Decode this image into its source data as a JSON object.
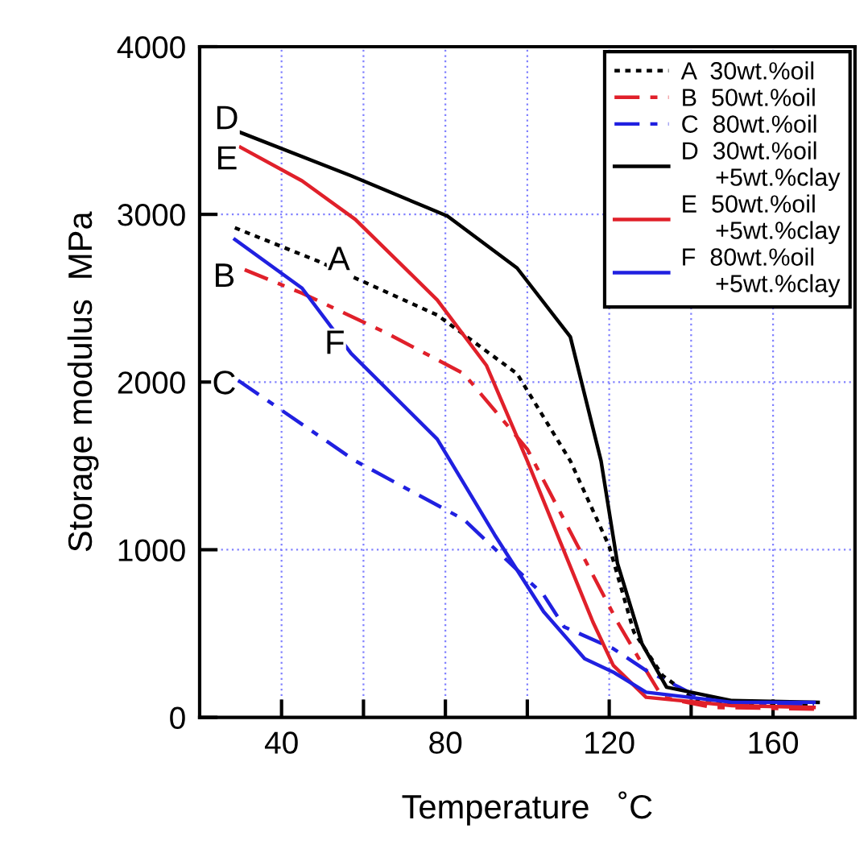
{
  "chart_data": {
    "type": "line",
    "xlabel": "Temperature   ˚C",
    "ylabel": "Storage modulus  MPa",
    "xlim": [
      20,
      180
    ],
    "ylim": [
      0,
      4000
    ],
    "xticks": [
      40,
      {
        "value": 60,
        "label": null
      },
      80,
      {
        "value": 100,
        "label": null
      },
      120,
      {
        "value": 140,
        "label": null
      },
      160
    ],
    "yticks": [
      0,
      1000,
      2000,
      3000,
      4000
    ],
    "grid": true,
    "legend": "top right",
    "marker": "none",
    "series": [
      {
        "name": "A  30wt.%oil",
        "color": "#000000",
        "line_style": "dotted",
        "x": [
          28.6,
          49,
          58,
          78,
          97.5,
          110.5,
          120,
          126,
          133,
          142,
          155,
          170
        ],
        "values": [
          2920,
          2720,
          2620,
          2400,
          2050,
          1530,
          1020,
          510,
          250,
          90,
          70,
          70
        ]
      },
      {
        "name": "B  50wt.%oil",
        "color": "#e0202a",
        "line_style": "dashed",
        "x": [
          31,
          45,
          65,
          84.5,
          100,
          113,
          122,
          128,
          133,
          145,
          170
        ],
        "values": [
          2670,
          2530,
          2300,
          2050,
          1600,
          990,
          570,
          320,
          120,
          60,
          50
        ]
      },
      {
        "name": "C  80wt.%oil",
        "color": "#2020e0",
        "line_style": "dashed",
        "x": [
          29.4,
          58,
          84.5,
          104,
          109,
          121,
          129,
          142,
          155,
          170
        ],
        "values": [
          2010,
          1530,
          1180,
          730,
          540,
          410,
          280,
          120,
          80,
          80
        ]
      },
      {
        "name": "D  30wt.%oil\n     +5wt.%clay",
        "color": "#000000",
        "line_style": "solid",
        "x": [
          29.8,
          57,
          80.5,
          97.5,
          110.5,
          118,
          122,
          128,
          134,
          150,
          171
        ],
        "values": [
          3490,
          3230,
          2990,
          2680,
          2270,
          1530,
          920,
          440,
          180,
          100,
          90
        ]
      },
      {
        "name": "E  50wt.%oil\n     +5wt.%clay",
        "color": "#e0202a",
        "line_style": "solid",
        "x": [
          30,
          45,
          58,
          78,
          90,
          100,
          108,
          116,
          121,
          129,
          150,
          170
        ],
        "values": [
          3400,
          3200,
          2970,
          2490,
          2100,
          1530,
          1050,
          570,
          310,
          120,
          70,
          60
        ]
      },
      {
        "name": "F  80wt.%oil\n     +5wt.%clay",
        "color": "#2020e0",
        "line_style": "solid",
        "x": [
          28.6,
          45,
          57,
          78,
          92,
          104,
          114,
          121,
          129,
          150,
          170
        ],
        "values": [
          2850,
          2560,
          2170,
          1660,
          1090,
          630,
          350,
          270,
          150,
          90,
          90
        ]
      }
    ],
    "annotations": [
      {
        "text": "A",
        "x": 54,
        "y": 2720
      },
      {
        "text": "B",
        "x": 26,
        "y": 2620
      },
      {
        "text": "C",
        "x": 26,
        "y": 1980
      },
      {
        "text": "D",
        "x": 26.6,
        "y": 3560
      },
      {
        "text": "E",
        "x": 26.6,
        "y": 3320
      },
      {
        "text": "F",
        "x": 53,
        "y": 2220
      }
    ]
  }
}
